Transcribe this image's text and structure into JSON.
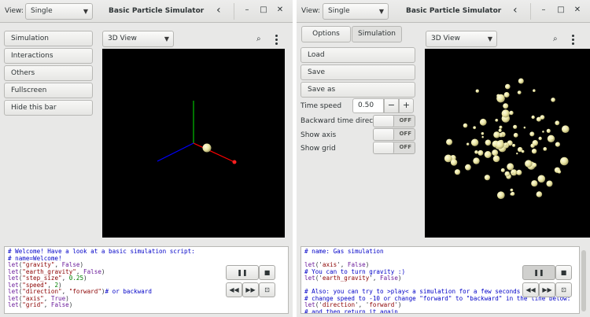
{
  "left_window": {
    "view_label": "View:",
    "view_select": "Single",
    "title": "Basic Particle Simulator",
    "sidebar": {
      "items": [
        {
          "label": "Simulation"
        },
        {
          "label": "Interactions"
        },
        {
          "label": "Others"
        },
        {
          "label": "Fullscreen"
        },
        {
          "label": "Hide this bar"
        }
      ]
    },
    "view_mode": "3D View",
    "script_lines": [
      [
        {
          "t": "# Welcome! Have a look at a basic simulation script:",
          "c": "comment"
        }
      ],
      [
        {
          "t": "# name=Welcome!",
          "c": "comment"
        }
      ],
      [
        {
          "t": "let",
          "c": "func"
        },
        {
          "t": "(",
          "c": "txt"
        },
        {
          "t": "\"gravity\"",
          "c": "str"
        },
        {
          "t": ", ",
          "c": "txt"
        },
        {
          "t": "False",
          "c": "bool"
        },
        {
          "t": ")",
          "c": "txt"
        }
      ],
      [
        {
          "t": "let",
          "c": "func"
        },
        {
          "t": "(",
          "c": "txt"
        },
        {
          "t": "\"earth_gravity\"",
          "c": "str"
        },
        {
          "t": ", ",
          "c": "txt"
        },
        {
          "t": "False",
          "c": "bool"
        },
        {
          "t": ")",
          "c": "txt"
        }
      ],
      [
        {
          "t": "let",
          "c": "func"
        },
        {
          "t": "(",
          "c": "txt"
        },
        {
          "t": "\"step_size\"",
          "c": "str"
        },
        {
          "t": ", ",
          "c": "txt"
        },
        {
          "t": "0.25",
          "c": "num"
        },
        {
          "t": ")",
          "c": "txt"
        }
      ],
      [
        {
          "t": "let",
          "c": "func"
        },
        {
          "t": "(",
          "c": "txt"
        },
        {
          "t": "\"speed\"",
          "c": "str"
        },
        {
          "t": ", ",
          "c": "txt"
        },
        {
          "t": "2",
          "c": "num"
        },
        {
          "t": ")",
          "c": "txt"
        }
      ],
      [
        {
          "t": "let",
          "c": "func"
        },
        {
          "t": "(",
          "c": "txt"
        },
        {
          "t": "\"direction\"",
          "c": "str"
        },
        {
          "t": ", ",
          "c": "txt"
        },
        {
          "t": "\"forward\"",
          "c": "str"
        },
        {
          "t": ")",
          "c": "txt"
        },
        {
          "t": "# or backward",
          "c": "comment"
        }
      ],
      [
        {
          "t": "let",
          "c": "func"
        },
        {
          "t": "(",
          "c": "txt"
        },
        {
          "t": "\"axis\"",
          "c": "str"
        },
        {
          "t": ", ",
          "c": "txt"
        },
        {
          "t": "True",
          "c": "bool"
        },
        {
          "t": ")",
          "c": "txt"
        }
      ],
      [
        {
          "t": "let",
          "c": "func"
        },
        {
          "t": "(",
          "c": "txt"
        },
        {
          "t": "\"grid\"",
          "c": "str"
        },
        {
          "t": ", ",
          "c": "txt"
        },
        {
          "t": "False",
          "c": "bool"
        },
        {
          "t": ")",
          "c": "txt"
        }
      ]
    ]
  },
  "right_window": {
    "view_label": "View:",
    "view_select": "Single",
    "title": "Basic Particle Simulator",
    "tabs": [
      {
        "label": "Options"
      },
      {
        "label": "Simulation"
      }
    ],
    "actions": [
      {
        "label": "Load"
      },
      {
        "label": "Save"
      },
      {
        "label": "Save as"
      }
    ],
    "time_speed_label": "Time speed",
    "time_speed_value": "0.50",
    "toggles": [
      {
        "label": "Backward time direction",
        "state": "OFF"
      },
      {
        "label": "Show axis",
        "state": "OFF"
      },
      {
        "label": "Show grid",
        "state": "OFF"
      }
    ],
    "view_mode": "3D View",
    "script_lines": [
      [
        {
          "t": "# name: Gas simulation",
          "c": "comment"
        }
      ],
      [
        {
          "t": "",
          "c": "txt"
        }
      ],
      [
        {
          "t": "let",
          "c": "func"
        },
        {
          "t": "('",
          "c": "txt"
        },
        {
          "t": "axis",
          "c": "str"
        },
        {
          "t": "', ",
          "c": "txt"
        },
        {
          "t": "False",
          "c": "bool"
        },
        {
          "t": ")",
          "c": "txt"
        }
      ],
      [
        {
          "t": "# You can to turn gravity :)",
          "c": "comment"
        }
      ],
      [
        {
          "t": "let",
          "c": "func"
        },
        {
          "t": "('",
          "c": "txt"
        },
        {
          "t": "earth_gravity",
          "c": "str"
        },
        {
          "t": "', ",
          "c": "txt"
        },
        {
          "t": "False",
          "c": "bool"
        },
        {
          "t": ")",
          "c": "txt"
        }
      ],
      [
        {
          "t": "",
          "c": "txt"
        }
      ],
      [
        {
          "t": "# Also: you can try to >play< a simulation for a few seconds and th",
          "c": "comment"
        }
      ],
      [
        {
          "t": "# change speed to -10 or change \"forward\" to \"backward\" in the line below:",
          "c": "comment"
        }
      ],
      [
        {
          "t": "let",
          "c": "func"
        },
        {
          "t": "('",
          "c": "txt"
        },
        {
          "t": "direction",
          "c": "str"
        },
        {
          "t": "', '",
          "c": "txt"
        },
        {
          "t": "forward",
          "c": "str"
        },
        {
          "t": "')",
          "c": "txt"
        }
      ],
      [
        {
          "t": "# and then return it again",
          "c": "comment"
        }
      ]
    ]
  },
  "icons": {
    "back": "chevron-left-icon",
    "minimize": "minimize-icon",
    "maximize": "maximize-icon",
    "close": "close-icon",
    "search": "search-icon",
    "menu": "vertical-dots-menu-icon",
    "pause": "pause-icon",
    "stop": "stop-icon",
    "rewind": "rewind-icon",
    "fast_forward": "fast-forward-icon",
    "screenshot": "camera-icon"
  },
  "colors": {
    "particle": "#e8e3a0",
    "axis_x": "#ff0000",
    "axis_y": "#00c000",
    "axis_z": "#0000ff"
  }
}
